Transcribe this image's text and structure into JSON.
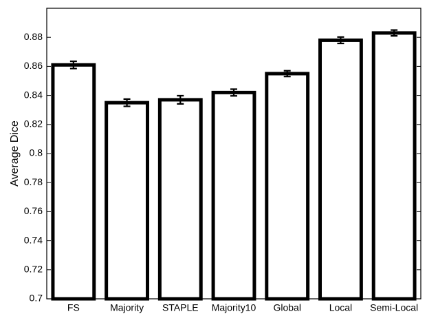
{
  "chart_data": {
    "type": "bar",
    "y_label": "Average Dice",
    "categories": [
      "FS",
      "Majority",
      "STAPLE",
      "Majority10",
      "Global",
      "Local",
      "Semi-Local"
    ],
    "values": [
      0.861,
      0.835,
      0.837,
      0.842,
      0.855,
      0.878,
      0.883
    ],
    "errors": [
      0.0025,
      0.0025,
      0.0028,
      0.0023,
      0.002,
      0.0022,
      0.002
    ],
    "color": "#ffffff",
    "ylim": [
      0.7,
      0.9
    ],
    "yticks": [
      0.7,
      0.72,
      0.74,
      0.76,
      0.78,
      0.8,
      0.82,
      0.84,
      0.86,
      0.88
    ],
    "grid": false
  }
}
